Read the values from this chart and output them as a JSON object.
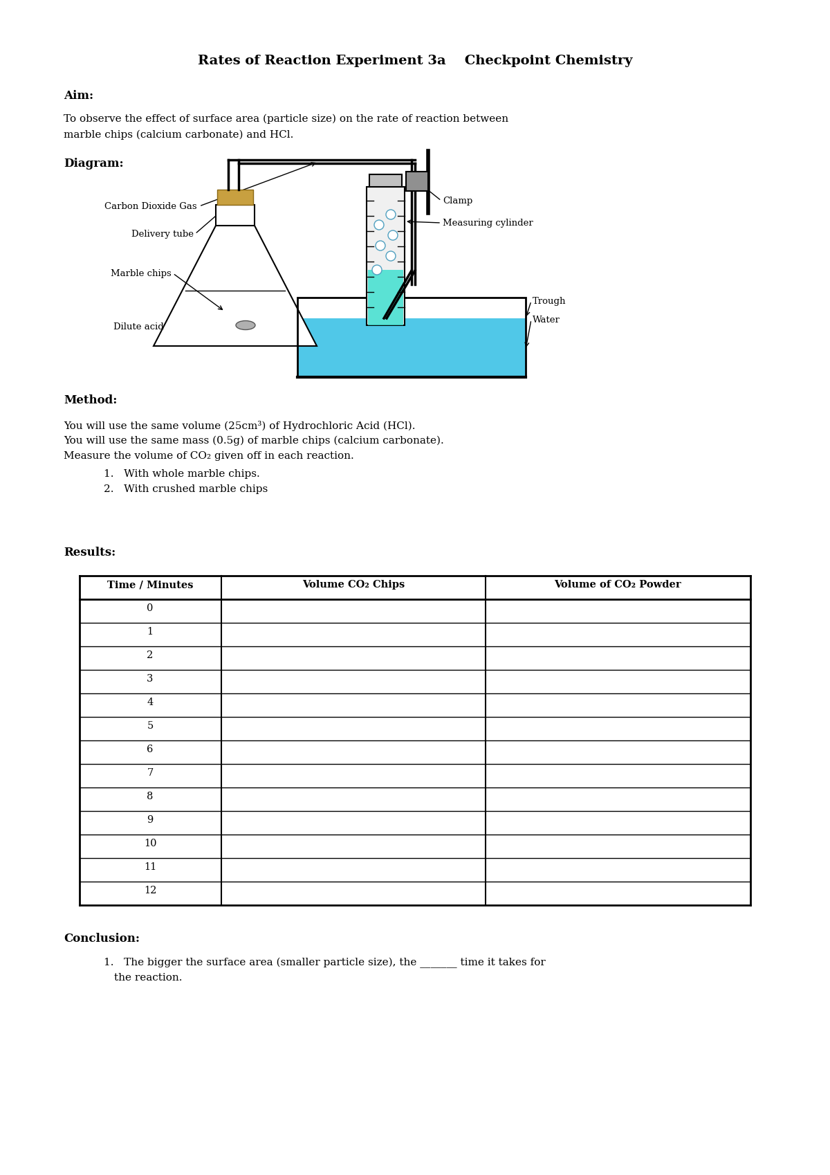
{
  "title": "Rates of Reaction Experiment 3a    Checkpoint Chemistry",
  "aim_header": "Aim:",
  "aim_text_line1": "To observe the effect of surface area (particle size) on the rate of reaction between",
  "aim_text_line2": "marble chips (calcium carbonate) and HCl.",
  "diagram_header": "Diagram:",
  "method_header": "Method:",
  "method_line1": "You will use the same volume (25cm³) of Hydrochloric Acid (HCl).",
  "method_line2": "You will use the same mass (0.5g) of marble chips (calcium carbonate).",
  "method_line3": "Measure the volume of CO₂ given off in each reaction.",
  "method_bullet1": "With whole marble chips.",
  "method_bullet2": "With crushed marble chips",
  "results_header": "Results:",
  "table_headers": [
    "Time / Minutes",
    "Volume CO₂ Chips",
    "Volume of CO₂ Powder"
  ],
  "table_rows": [
    "0",
    "1",
    "2",
    "3",
    "4",
    "5",
    "6",
    "7",
    "8",
    "9",
    "10",
    "11",
    "12"
  ],
  "conclusion_header": "Conclusion:",
  "conclusion_line1": "The bigger the surface area (smaller particle size), the _______ time it takes for",
  "conclusion_line2": "the reaction.",
  "bg_color": "#ffffff",
  "flask_liquid_color": "#40e0d0",
  "trough_color": "#50c8e8",
  "stopper_color": "#c8a040",
  "label_co2": "Carbon Dioxide Gas",
  "label_delivery": "Delivery tube",
  "label_marble": "Marble chips",
  "label_acid": "Dilute acid",
  "label_clamp": "Clamp",
  "label_cylinder": "Measuring cylinder",
  "label_trough": "Trough",
  "label_water": "Water"
}
